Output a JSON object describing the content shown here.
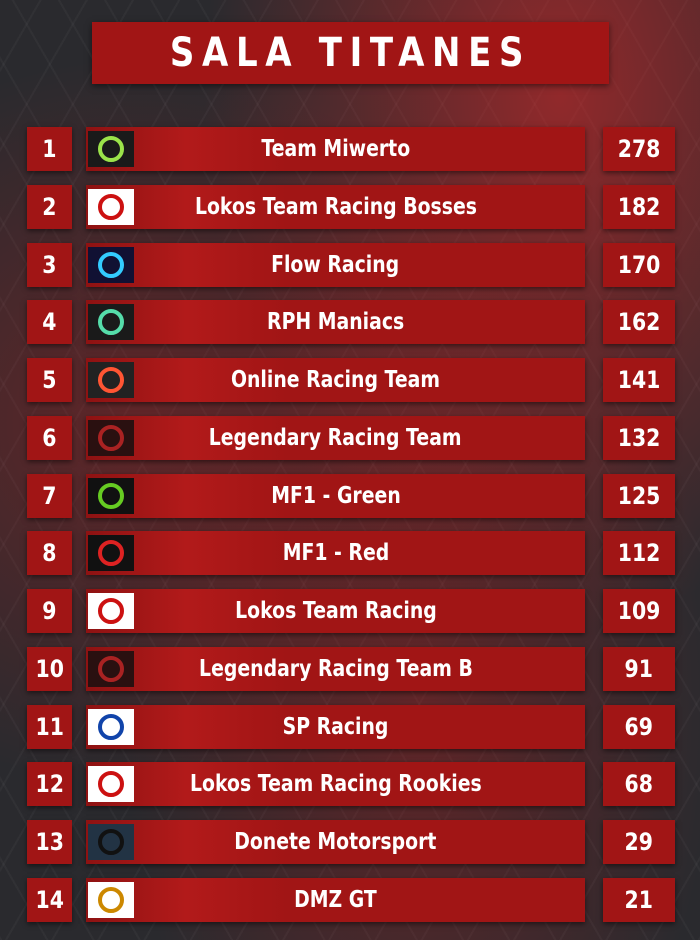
{
  "header": {
    "title": "SALA TITANES"
  },
  "table": {
    "rows": [
      [
        1,
        "Team Miwerto",
        278
      ],
      [
        2,
        "Lokos Team Racing Bosses",
        182
      ],
      [
        3,
        "Flow Racing",
        170
      ],
      [
        4,
        "RPH Maniacs",
        162
      ],
      [
        5,
        "Online Racing Team",
        141
      ],
      [
        6,
        "Legendary Racing Team",
        132
      ],
      [
        7,
        "MF1 - Green",
        125
      ],
      [
        8,
        "MF1 - Red",
        112
      ],
      [
        9,
        "Lokos Team Racing",
        109
      ],
      [
        10,
        "Legendary Racing Team B",
        91
      ],
      [
        11,
        "SP Racing",
        69
      ],
      [
        12,
        "Lokos Team Racing Rookies",
        68
      ],
      [
        13,
        "Donete Motorsport",
        29
      ],
      [
        14,
        "DMZ  GT",
        21
      ]
    ]
  }
}
